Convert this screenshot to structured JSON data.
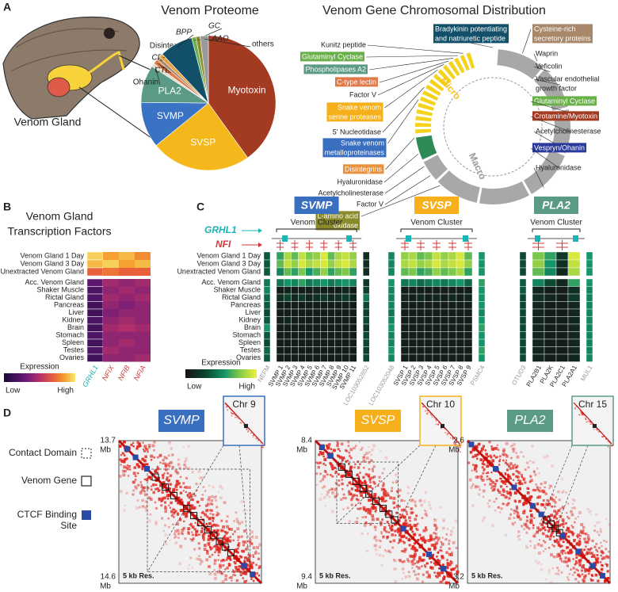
{
  "panel_labels": {
    "a": "A",
    "b": "B",
    "c": "C",
    "d": "D"
  },
  "illustration_label": "Venom Gland",
  "chart_data": [
    {
      "type": "pie",
      "title": "Venom Proteome",
      "categories": [
        "Myotoxin",
        "SVSP",
        "SVMP",
        "PLA2",
        "Ohanin",
        "CTL",
        "CRISP",
        "Disintegrin",
        "BPP",
        "GC",
        "LAAO",
        "others"
      ],
      "values": [
        40,
        24,
        11,
        9,
        0.8,
        1.2,
        0.8,
        1,
        8,
        1,
        1,
        2
      ],
      "colors": [
        "#a33a22",
        "#f5b81c",
        "#3a72c4",
        "#5a9a86",
        "#e6dccb",
        "#e07a4a",
        "#a8876a",
        "#e8a040",
        "#12506a",
        "#6ab04a",
        "#8a8a2a",
        "#9a9a9a"
      ],
      "label_italic": [
        false,
        false,
        false,
        false,
        false,
        true,
        true,
        false,
        true,
        true,
        true,
        false
      ]
    },
    {
      "type": "heatmap",
      "title": [
        "Venom Gland",
        "Transcription Factors"
      ],
      "rows": [
        "Venom Gland 1 Day",
        "Venom Gland 3 Day",
        "Unextracted Venom Gland",
        "Acc. Venom Gland",
        "Shaker Muscle",
        "Rictal Gland",
        "Pancreas",
        "Liver",
        "Kidney",
        "Brain",
        "Stomach",
        "Spleen",
        "Testes",
        "Ovaries"
      ],
      "columns": [
        "GRHL1",
        "NFIX",
        "NFIB",
        "NFIA"
      ],
      "column_colors": [
        "#19b0b0",
        "#d03a3a",
        "#d03a3a",
        "#d03a3a"
      ],
      "values": [
        [
          0.95,
          0.85,
          0.9,
          0.8
        ],
        [
          0.9,
          0.95,
          0.85,
          0.9
        ],
        [
          0.7,
          0.75,
          0.7,
          0.7
        ],
        [
          0.25,
          0.45,
          0.4,
          0.45
        ],
        [
          0.2,
          0.4,
          0.45,
          0.4
        ],
        [
          0.2,
          0.45,
          0.4,
          0.45
        ],
        [
          0.15,
          0.4,
          0.35,
          0.4
        ],
        [
          0.15,
          0.35,
          0.4,
          0.4
        ],
        [
          0.2,
          0.4,
          0.45,
          0.4
        ],
        [
          0.15,
          0.45,
          0.5,
          0.45
        ],
        [
          0.2,
          0.4,
          0.4,
          0.4
        ],
        [
          0.15,
          0.4,
          0.45,
          0.4
        ],
        [
          0.2,
          0.45,
          0.4,
          0.4
        ],
        [
          0.15,
          0.4,
          0.4,
          0.45
        ]
      ],
      "colorbar": {
        "title": "Expression",
        "low": "Low",
        "high": "High"
      }
    },
    {
      "type": "heatmap-groups",
      "rows": [
        "Venom Gland 1 Day",
        "Venom Gland 3 Day",
        "Unextracted Venom Gland",
        "Acc. Venom Gland",
        "Shaker Muscle",
        "Rictal Gland",
        "Pancreas",
        "Liver",
        "Kidney",
        "Brain",
        "Stomach",
        "Spleen",
        "Testes",
        "Ovaries"
      ],
      "tracks": [
        {
          "name": "GRHL1",
          "color": "#19b5b5"
        },
        {
          "name": "NFI",
          "color": "#d03a3a"
        }
      ],
      "colorbar": {
        "title": "Expression",
        "low": "Low",
        "high": "High"
      },
      "groups": [
        {
          "name": "SVMP",
          "subtitle": "Venom Cluster",
          "color": "#3a6fc0",
          "columns": [
            "NEFM",
            "SVMP 1",
            "SVMP 2",
            "SVMP 3",
            "SVMP 4",
            "SVMP 5",
            "SVMP 6",
            "SVMP 7",
            "SVMP 8",
            "SVMP 9",
            "SVMP 10",
            "SVMP 11",
            "LOC103052852"
          ],
          "flanking": [
            true,
            false,
            false,
            false,
            false,
            false,
            false,
            false,
            false,
            false,
            false,
            false,
            true
          ],
          "values": [
            [
              0.35,
              0.6,
              0.85,
              0.7,
              0.9,
              0.75,
              0.8,
              0.95,
              0.7,
              0.85,
              0.9,
              0.8,
              0.15
            ],
            [
              0.35,
              0.7,
              0.9,
              0.8,
              0.95,
              0.85,
              0.9,
              0.95,
              0.8,
              0.9,
              0.95,
              0.85,
              0.15
            ],
            [
              0.35,
              0.5,
              0.7,
              0.6,
              0.75,
              0.55,
              0.65,
              0.8,
              0.6,
              0.7,
              0.75,
              0.6,
              0.15
            ],
            [
              0.45,
              0.45,
              0.55,
              0.5,
              0.6,
              0.45,
              0.5,
              0.55,
              0.45,
              0.5,
              0.55,
              0.5,
              0.2
            ],
            [
              0.5,
              0.05,
              0.1,
              0.05,
              0.05,
              0.05,
              0.1,
              0.05,
              0.05,
              0.05,
              0.1,
              0.05,
              0.25
            ],
            [
              0.4,
              0.15,
              0.25,
              0.1,
              0.2,
              0.1,
              0.15,
              0.2,
              0.1,
              0.15,
              0.2,
              0.1,
              0.45
            ],
            [
              0.35,
              0.05,
              0.05,
              0.05,
              0.05,
              0.05,
              0.05,
              0.05,
              0.05,
              0.05,
              0.05,
              0.05,
              0.3
            ],
            [
              0.3,
              0.05,
              0.05,
              0.05,
              0.05,
              0.05,
              0.05,
              0.05,
              0.05,
              0.05,
              0.05,
              0.05,
              0.25
            ],
            [
              0.35,
              0.05,
              0.1,
              0.05,
              0.05,
              0.05,
              0.05,
              0.05,
              0.05,
              0.05,
              0.05,
              0.05,
              0.3
            ],
            [
              0.55,
              0.05,
              0.05,
              0.05,
              0.05,
              0.05,
              0.05,
              0.05,
              0.05,
              0.05,
              0.05,
              0.05,
              0.2
            ],
            [
              0.35,
              0.05,
              0.05,
              0.05,
              0.05,
              0.05,
              0.05,
              0.05,
              0.05,
              0.05,
              0.05,
              0.05,
              0.3
            ],
            [
              0.3,
              0.05,
              0.05,
              0.05,
              0.05,
              0.05,
              0.05,
              0.05,
              0.05,
              0.05,
              0.05,
              0.05,
              0.3
            ],
            [
              0.4,
              0.05,
              0.05,
              0.05,
              0.05,
              0.05,
              0.05,
              0.05,
              0.05,
              0.05,
              0.05,
              0.05,
              0.25
            ],
            [
              0.35,
              0.05,
              0.05,
              0.05,
              0.05,
              0.05,
              0.05,
              0.05,
              0.05,
              0.05,
              0.05,
              0.05,
              0.3
            ]
          ]
        },
        {
          "name": "SVSP",
          "subtitle": "Venom Cluster",
          "color": "#f5b01c",
          "columns": [
            "LOC103052048",
            "SVSP 1",
            "SVSP 2",
            "SVSP 3",
            "SVSP 4",
            "SVSP 5",
            "SVSP 6",
            "SVSP 7",
            "SVSP 8",
            "SVSP 9",
            "PSMC4"
          ],
          "flanking": [
            true,
            false,
            false,
            false,
            false,
            false,
            false,
            false,
            false,
            false,
            true
          ],
          "values": [
            [
              0.5,
              0.8,
              0.85,
              0.7,
              0.75,
              0.9,
              0.8,
              0.85,
              0.95,
              0.7,
              0.55
            ],
            [
              0.5,
              0.85,
              0.9,
              0.8,
              0.85,
              0.95,
              0.85,
              0.9,
              0.95,
              0.8,
              0.55
            ],
            [
              0.5,
              0.7,
              0.75,
              0.6,
              0.65,
              0.8,
              0.7,
              0.75,
              0.85,
              0.6,
              0.55
            ],
            [
              0.55,
              0.45,
              0.5,
              0.4,
              0.45,
              0.5,
              0.45,
              0.5,
              0.55,
              0.4,
              0.6
            ],
            [
              0.5,
              0.05,
              0.05,
              0.05,
              0.05,
              0.05,
              0.05,
              0.05,
              0.05,
              0.05,
              0.55
            ],
            [
              0.5,
              0.1,
              0.05,
              0.1,
              0.05,
              0.1,
              0.05,
              0.1,
              0.05,
              0.1,
              0.55
            ],
            [
              0.5,
              0.05,
              0.05,
              0.05,
              0.05,
              0.05,
              0.05,
              0.05,
              0.05,
              0.05,
              0.55
            ],
            [
              0.45,
              0.05,
              0.05,
              0.05,
              0.05,
              0.05,
              0.05,
              0.05,
              0.05,
              0.05,
              0.5
            ],
            [
              0.5,
              0.05,
              0.05,
              0.05,
              0.05,
              0.05,
              0.05,
              0.05,
              0.05,
              0.05,
              0.55
            ],
            [
              0.55,
              0.05,
              0.05,
              0.05,
              0.05,
              0.05,
              0.05,
              0.05,
              0.05,
              0.05,
              0.6
            ],
            [
              0.5,
              0.05,
              0.05,
              0.05,
              0.05,
              0.05,
              0.05,
              0.05,
              0.05,
              0.05,
              0.55
            ],
            [
              0.5,
              0.05,
              0.05,
              0.05,
              0.05,
              0.05,
              0.05,
              0.05,
              0.05,
              0.05,
              0.55
            ],
            [
              0.55,
              0.05,
              0.05,
              0.05,
              0.05,
              0.05,
              0.05,
              0.05,
              0.05,
              0.05,
              0.6
            ],
            [
              0.5,
              0.05,
              0.05,
              0.05,
              0.05,
              0.05,
              0.05,
              0.05,
              0.05,
              0.05,
              0.55
            ]
          ]
        },
        {
          "name": "PLA2",
          "subtitle": "Venom Cluster",
          "color": "#5a9a86",
          "columns": [
            "OTUD3",
            "PLA2B1",
            "PLA2K",
            "PLA2C1",
            "PLA2A1",
            "MUL1"
          ],
          "flanking": [
            true,
            false,
            false,
            false,
            false,
            true
          ],
          "values": [
            [
              0.3,
              0.75,
              0.6,
              0.2,
              0.95,
              0.55
            ],
            [
              0.3,
              0.8,
              0.55,
              0.15,
              0.9,
              0.55
            ],
            [
              0.3,
              0.7,
              0.5,
              0.1,
              0.85,
              0.55
            ],
            [
              0.35,
              0.5,
              0.3,
              0.1,
              0.6,
              0.55
            ],
            [
              0.35,
              0.1,
              0.05,
              0.05,
              0.15,
              0.5
            ],
            [
              0.3,
              0.15,
              0.1,
              0.05,
              0.2,
              0.5
            ],
            [
              0.3,
              0.1,
              0.05,
              0.05,
              0.1,
              0.5
            ],
            [
              0.3,
              0.1,
              0.05,
              0.05,
              0.1,
              0.5
            ],
            [
              0.3,
              0.1,
              0.05,
              0.05,
              0.1,
              0.5
            ],
            [
              0.3,
              0.1,
              0.05,
              0.05,
              0.1,
              0.5
            ],
            [
              0.3,
              0.1,
              0.05,
              0.05,
              0.1,
              0.5
            ],
            [
              0.3,
              0.1,
              0.05,
              0.05,
              0.1,
              0.5
            ],
            [
              0.3,
              0.1,
              0.05,
              0.05,
              0.1,
              0.5
            ],
            [
              0.3,
              0.1,
              0.05,
              0.05,
              0.1,
              0.5
            ]
          ]
        }
      ]
    }
  ],
  "chromosome_map": {
    "title": "Venom Gene Chromosomal Distribution",
    "ring_labels": [
      "Micro",
      "Macro"
    ],
    "left_labels": [
      {
        "lines": [
          "Kunitz peptide"
        ]
      },
      {
        "lines": [
          "Glutaminyl Cyclase"
        ],
        "color": "#6ab04a"
      },
      {
        "lines": [
          "Phospholipases A2"
        ],
        "color": "#5a9a86"
      },
      {
        "lines": [
          "C-type lectin"
        ],
        "color": "#e07a4a"
      },
      {
        "lines": [
          "Factor V"
        ]
      },
      {
        "lines": [
          "Snake venom",
          "serine proteases"
        ],
        "color": "#f5b01c"
      },
      {
        "lines": [
          "5' Nucleotidase"
        ]
      },
      {
        "lines": [
          "Snake venom",
          "metalloproteinases"
        ],
        "color": "#3a6fc0"
      },
      {
        "lines": [
          "Disintegrins"
        ],
        "color": "#e8903a"
      },
      {
        "lines": [
          "Hyaluronidase"
        ]
      },
      {
        "lines": [
          "Acetylcholinesterase"
        ]
      },
      {
        "lines": [
          "Factor V"
        ]
      },
      {
        "lines": [
          "L-amino acid",
          "oxidase"
        ],
        "color": "#8a8a2a"
      }
    ],
    "right_labels": [
      {
        "lines": [
          "Bradykinin potentiating",
          "and natriuretic peptide"
        ],
        "color": "#12506a"
      },
      {
        "lines": [
          "Cysteine-rich",
          "secretory proteins"
        ],
        "color": "#a8876a"
      },
      {
        "lines": [
          "Waprin"
        ]
      },
      {
        "lines": [
          "Veficolin"
        ]
      },
      {
        "lines": [
          "Vascular endothelial",
          "growth factor"
        ]
      },
      {
        "lines": [
          "Glutaminyl Cyclase"
        ],
        "color": "#6ab04a"
      },
      {
        "lines": [
          "Crotamine/Myotoxin"
        ],
        "color": "#a33a22"
      },
      {
        "lines": [
          "Acetylcholinesterase"
        ]
      },
      {
        "lines": [
          "Vespryn/Ohanin"
        ],
        "color": "#2a3a9a"
      },
      {
        "lines": [
          "Hyaluronidase"
        ]
      }
    ]
  },
  "hic": {
    "legend": [
      {
        "lines": [
          "Contact Domain"
        ]
      },
      {
        "lines": [
          "Venom Gene"
        ]
      },
      {
        "lines": [
          "CTCF Binding",
          "Site"
        ]
      }
    ],
    "maps": [
      {
        "gene": "SVMP",
        "color": "#3a6fc0",
        "chromosome": "Chr 9",
        "start": 13.7,
        "end": 14.6,
        "unit": "Mb",
        "resolution": "5 kb Res."
      },
      {
        "gene": "SVSP",
        "color": "#f5b01c",
        "chromosome": "Chr 10",
        "start": 8.4,
        "end": 9.4,
        "unit": "Mb",
        "resolution": "5 kb Res."
      },
      {
        "gene": "PLA2",
        "color": "#5a9a86",
        "chromosome": "Chr 15",
        "start": 2.6,
        "end": 3.2,
        "unit": "Mb",
        "resolution": "5 kb Res."
      }
    ]
  }
}
